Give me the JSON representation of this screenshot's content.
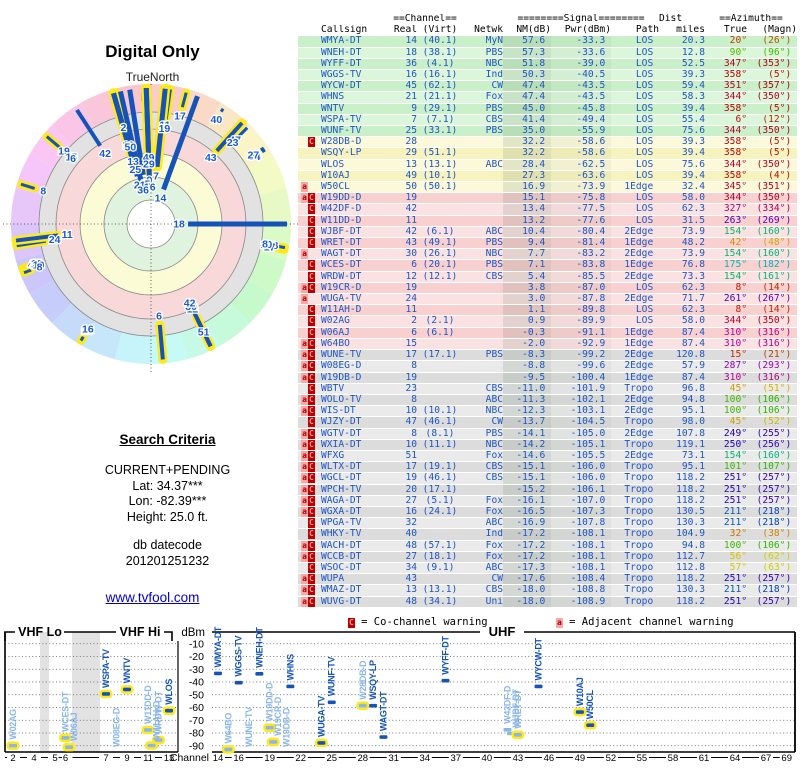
{
  "header": {
    "title": "Digital Only",
    "true_north_label": "TrueNorth",
    "north_letter": "N"
  },
  "search_criteria": {
    "heading": "Search Criteria",
    "mode": "CURRENT+PENDING",
    "lat": "Lat: 34.37***",
    "lon": "Lon: -82.39***",
    "height": "Height: 25.0 ft.",
    "datecode_label": "db datecode",
    "datecode": "201201251232"
  },
  "footer_link": "www.tvfool.com",
  "warnings_legend": {
    "c_badge": "C",
    "c_text": "= Co-channel warning",
    "a_badge": "a",
    "a_text": "= Adjacent channel warning"
  },
  "table": {
    "group_headers": {
      "channel": "==Channel==",
      "signal": "========Signal========",
      "dist": "Dist",
      "azimuth": "==Azimuth=="
    },
    "columns": [
      "Callsign",
      "Real",
      "(Virt)",
      "Netwk",
      "NM(dB)",
      "Pwr(dBm)",
      "Path",
      "miles",
      "True",
      "(Magn)"
    ]
  },
  "colors": {
    "data_blue": "#1c55c8",
    "bar_blue": "#1553b8",
    "bar_weak_blue": "#8ab6ea",
    "highlight_yellow": "#ffe91a",
    "link_blue": "#0000cc",
    "north_red": "#cc0000",
    "warn_c_bg": "#bb0000",
    "warn_a_bg": "#f7a8a8"
  },
  "chart_data": {
    "station_fields": [
      "callsign",
      "real_ch",
      "virt_ch",
      "network",
      "nm_db",
      "pwr_dbm",
      "path",
      "dist_miles",
      "azimuth_true_deg",
      "azimuth_magn_deg",
      "warnings",
      "highlighted"
    ],
    "stations": [
      [
        "WMYA-DT",
        14,
        "40.1",
        "MyN",
        57.6,
        -33.3,
        "LOS",
        20.3,
        20,
        26,
        "",
        0
      ],
      [
        "WNEH-DT",
        18,
        "38.1",
        "PBS",
        57.3,
        -33.6,
        "LOS",
        12.8,
        90,
        96,
        "",
        0
      ],
      [
        "WYFF-DT",
        36,
        "4.1",
        "NBC",
        51.8,
        -39.0,
        "LOS",
        52.5,
        347,
        353,
        "",
        0
      ],
      [
        "WGGS-TV",
        16,
        "16.1",
        "Ind",
        50.3,
        -40.5,
        "LOS",
        39.3,
        358,
        5,
        "",
        0
      ],
      [
        "WYCW-DT",
        45,
        "62.1",
        "CW",
        47.4,
        -43.5,
        "LOS",
        59.4,
        351,
        357,
        "",
        0
      ],
      [
        "WHNS",
        21,
        "21.1",
        "Fox",
        47.4,
        -43.5,
        "LOS",
        58.3,
        344,
        350,
        "",
        0
      ],
      [
        "WNTV",
        9,
        "29.1",
        "PBS",
        45.0,
        -45.8,
        "LOS",
        39.4,
        358,
        5,
        "",
        1
      ],
      [
        "WSPA-TV",
        7,
        "7.1",
        "CBS",
        41.4,
        -49.4,
        "LOS",
        55.4,
        6,
        12,
        "",
        1
      ],
      [
        "WUNF-TV",
        25,
        "33.1",
        "PBS",
        35.0,
        -55.9,
        "LOS",
        75.6,
        344,
        350,
        "",
        0
      ],
      [
        "W28DB-D",
        28,
        "",
        "",
        32.2,
        -58.6,
        "LOS",
        39.3,
        358,
        5,
        "C",
        1
      ],
      [
        "WSQY-LP",
        29,
        "51.1",
        "",
        32.2,
        -58.6,
        "LOS",
        39.4,
        358,
        5,
        "",
        0
      ],
      [
        "WLOS",
        13,
        "13.1",
        "ABC",
        28.4,
        -62.5,
        "LOS",
        75.6,
        344,
        350,
        "",
        1
      ],
      [
        "W10AJ",
        49,
        "10.1",
        "",
        27.3,
        -63.6,
        "LOS",
        39.4,
        358,
        4,
        "",
        1
      ],
      [
        "W50CL",
        50,
        "50.1",
        "",
        16.9,
        -73.9,
        "1Edge",
        32.4,
        345,
        351,
        "a",
        1
      ],
      [
        "W19DD-D",
        19,
        "",
        "",
        15.1,
        -75.8,
        "LOS",
        58.0,
        344,
        350,
        "aC",
        1
      ],
      [
        "W42DF-D",
        42,
        "",
        "",
        13.4,
        -77.5,
        "LOS",
        62.3,
        327,
        334,
        "C",
        0
      ],
      [
        "W11DD-D",
        11,
        "",
        "",
        13.2,
        -77.6,
        "LOS",
        31.5,
        263,
        269,
        "C",
        1
      ],
      [
        "WJBF-DT",
        42,
        "6.1",
        "ABC",
        10.4,
        -80.4,
        "2Edge",
        73.9,
        154,
        160,
        "C",
        0
      ],
      [
        "WRET-DT",
        43,
        "49.1",
        "PBS",
        9.4,
        -81.4,
        "1Edge",
        48.2,
        42,
        48,
        "C",
        1
      ],
      [
        "WAGT-DT",
        30,
        "26.1",
        "NBC",
        7.7,
        -83.2,
        "2Edge",
        73.9,
        154,
        160,
        "a",
        0
      ],
      [
        "WCES-DT",
        6,
        "20.1",
        "PBS",
        7.1,
        -83.8,
        "1Edge",
        76.8,
        175,
        182,
        "C",
        1
      ],
      [
        "WRDW-DT",
        12,
        "12.1",
        "CBS",
        5.4,
        -85.5,
        "2Edge",
        73.3,
        154,
        161,
        "C",
        1
      ],
      [
        "W19CR-D",
        19,
        "",
        "",
        3.8,
        -87.0,
        "LOS",
        62.3,
        8,
        14,
        "aC",
        1
      ],
      [
        "WUGA-TV",
        24,
        "",
        "",
        3.0,
        -87.8,
        "2Edge",
        71.7,
        261,
        267,
        "a",
        1
      ],
      [
        "W11AH-D",
        11,
        "",
        "",
        1.1,
        -89.8,
        "LOS",
        62.3,
        8,
        14,
        "C",
        1
      ],
      [
        "W02AG",
        2,
        "2.1",
        "",
        0.9,
        -89.9,
        "LOS",
        58.0,
        344,
        350,
        "C",
        1
      ],
      [
        "W06AJ",
        6,
        "6.1",
        "",
        -0.3,
        -91.1,
        "1Edge",
        87.4,
        310,
        316,
        "C",
        1
      ],
      [
        "W64BO",
        15,
        "",
        "",
        -2.0,
        -92.9,
        "1Edge",
        87.4,
        310,
        316,
        "aC",
        1
      ],
      [
        "WUNE-TV",
        17,
        "17.1",
        "PBS",
        -8.3,
        -99.2,
        "2Edge",
        120.8,
        15,
        21,
        "aC",
        1
      ],
      [
        "W08EG-D",
        8,
        "",
        "",
        -8.8,
        -99.6,
        "2Edge",
        57.9,
        287,
        293,
        "aC",
        1
      ],
      [
        "W19DB-D",
        19,
        "",
        "",
        -9.5,
        -100.4,
        "1Edge",
        87.4,
        310,
        316,
        "aC",
        1
      ],
      [
        "WBTV",
        23,
        "",
        "CBS",
        -11.0,
        -101.9,
        "Tropo",
        96.8,
        45,
        51,
        "C",
        0
      ],
      [
        "WOLO-TV",
        8,
        "",
        "ABC",
        -11.3,
        -102.1,
        "2Edge",
        94.8,
        100,
        106,
        "aC",
        1
      ],
      [
        "WIS-DT",
        10,
        "10.1",
        "NBC",
        -12.3,
        -103.1,
        "2Edge",
        95.1,
        100,
        106,
        "aC",
        1
      ],
      [
        "WJZY-DT",
        47,
        "46.1",
        "CW",
        -13.7,
        -104.5,
        "Tropo",
        98.0,
        45,
        52,
        "C",
        0
      ],
      [
        "WGTV-DT",
        8,
        "8.1",
        "PBS",
        -14.1,
        -105.0,
        "2Edge",
        107.8,
        249,
        255,
        "aC",
        1
      ],
      [
        "WXIA-DT",
        10,
        "11.1",
        "NBC",
        -14.2,
        -105.1,
        "Tropo",
        119.1,
        250,
        256,
        "aC",
        1
      ],
      [
        "WFXG",
        51,
        "",
        "Fox",
        -14.6,
        -105.5,
        "2Edge",
        73.1,
        154,
        160,
        "aC",
        0
      ],
      [
        "WLTX-DT",
        17,
        "19.1",
        "CBS",
        -15.1,
        -106.0,
        "Tropo",
        95.1,
        101,
        107,
        "aC",
        1
      ],
      [
        "WGCL-DT",
        19,
        "46.1",
        "CBS",
        -15.1,
        -106.0,
        "Tropo",
        118.2,
        251,
        257,
        "aC",
        1
      ],
      [
        "WPCH-TV",
        20,
        "17.1",
        "",
        -15.2,
        -106.1,
        "Tropo",
        118.2,
        251,
        257,
        "aC",
        0
      ],
      [
        "WAGA-DT",
        27,
        "5.1",
        "Fox",
        -16.1,
        -107.0,
        "Tropo",
        118.2,
        251,
        257,
        "aC",
        0
      ],
      [
        "WGXA-DT",
        16,
        "24.1",
        "Fox",
        -16.5,
        -107.3,
        "Tropo",
        130.5,
        211,
        218,
        "aC",
        1
      ],
      [
        "WPGA-TV",
        32,
        "",
        "ABC",
        -16.9,
        -107.8,
        "Tropo",
        130.3,
        211,
        218,
        "C",
        1
      ],
      [
        "WHKY-TV",
        40,
        "",
        "Ind",
        -17.2,
        -108.1,
        "Tropo",
        104.9,
        32,
        38,
        "C",
        0
      ],
      [
        "WACH-DT",
        48,
        "57.1",
        "Fox",
        -17.2,
        -108.1,
        "Tropo",
        94.8,
        100,
        106,
        "aC",
        0
      ],
      [
        "WCCB-DT",
        27,
        "18.1",
        "Fox",
        -17.2,
        -108.1,
        "Tropo",
        112.7,
        56,
        62,
        "aC",
        0
      ],
      [
        "WSOC-DT",
        34,
        "9.1",
        "ABC",
        -17.3,
        -108.1,
        "Tropo",
        112.8,
        57,
        63,
        "C",
        0
      ],
      [
        "WUPA",
        43,
        "",
        "CW",
        -17.6,
        -108.4,
        "Tropo",
        118.2,
        251,
        257,
        "aC",
        0
      ],
      [
        "WMAZ-DT",
        13,
        "13.1",
        "CBS",
        -18.0,
        -108.8,
        "Tropo",
        130.3,
        211,
        218,
        "aC",
        1
      ],
      [
        "WUVG-DT",
        48,
        "34.1",
        "Uni",
        -18.0,
        -108.9,
        "Tropo",
        118.2,
        251,
        257,
        "aC",
        0
      ]
    ],
    "radar": {
      "type": "radar",
      "title": "Digital Only",
      "north_label": "TrueNorth",
      "angle_field": "azimuth_true_deg",
      "length_field": "nm_db",
      "label_field": "real_ch"
    },
    "spectrum": {
      "type": "bar",
      "xlabel": "Channel",
      "ylabel": "dBm",
      "ylim": [
        -100,
        0
      ],
      "yticks": [
        -10,
        -20,
        -30,
        -40,
        -50,
        -60,
        -70,
        -80,
        -90
      ],
      "band_labels": [
        "VHF Lo",
        "VHF Hi",
        "UHF"
      ],
      "vhf_channel_ticks": [
        2,
        4,
        5,
        6,
        7,
        9,
        11,
        13
      ],
      "uhf_channel_ticks": [
        14,
        16,
        19,
        22,
        25,
        28,
        31,
        34,
        37,
        40,
        43,
        46,
        49,
        52,
        55,
        58,
        61,
        64,
        67,
        69
      ],
      "x_field": "real_ch",
      "y_field": "pwr_dbm"
    }
  }
}
